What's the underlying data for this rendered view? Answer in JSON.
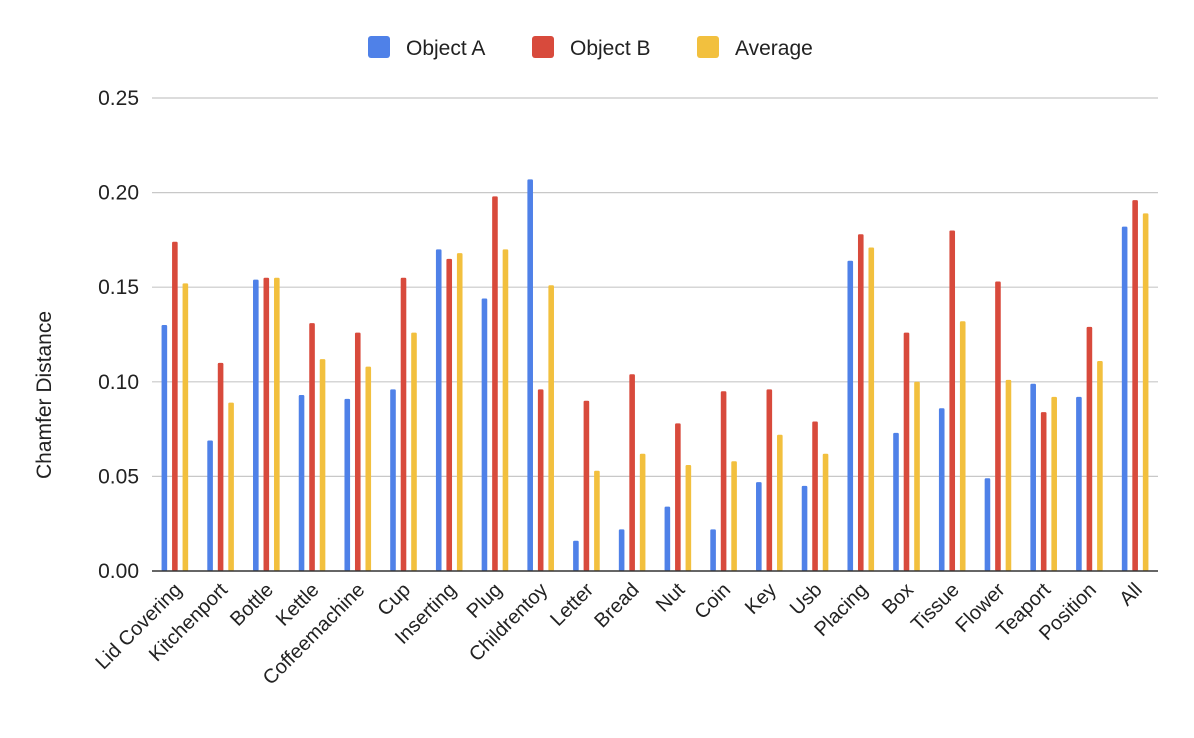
{
  "chart_data": {
    "type": "bar",
    "ylabel": "Chamfer Distance",
    "ylim": [
      0,
      0.25
    ],
    "yticks": [
      "0.00",
      "0.05",
      "0.10",
      "0.15",
      "0.20",
      "0.25"
    ],
    "ytick_values": [
      0,
      0.05,
      0.1,
      0.15,
      0.2,
      0.25
    ],
    "grid": true,
    "legend_position": "top-center",
    "categories": [
      "Lid Covering",
      "Kitchenport",
      "Bottle",
      "Kettle",
      "Coffeemachine",
      "Cup",
      "Inserting",
      "Plug",
      "Childrentoy",
      "Letter",
      "Bread",
      "Nut",
      "Coin",
      "Key",
      "Usb",
      "Placing",
      "Box",
      "Tissue",
      "Flower",
      "Teaport",
      "Position",
      "All"
    ],
    "series": [
      {
        "name": "Object A",
        "color": "#4f81e8",
        "values": [
          0.13,
          0.069,
          0.154,
          0.093,
          0.091,
          0.096,
          0.17,
          0.144,
          0.207,
          0.016,
          0.022,
          0.034,
          0.022,
          0.047,
          0.045,
          0.164,
          0.073,
          0.086,
          0.049,
          0.099,
          0.092,
          0.182
        ]
      },
      {
        "name": "Object B",
        "color": "#d84a3c",
        "values": [
          0.174,
          0.11,
          0.155,
          0.131,
          0.126,
          0.155,
          0.165,
          0.198,
          0.096,
          0.09,
          0.104,
          0.078,
          0.095,
          0.096,
          0.079,
          0.178,
          0.126,
          0.18,
          0.153,
          0.084,
          0.129,
          0.196
        ]
      },
      {
        "name": "Average",
        "color": "#f2c03e",
        "values": [
          0.152,
          0.089,
          0.155,
          0.112,
          0.108,
          0.126,
          0.168,
          0.17,
          0.151,
          0.053,
          0.062,
          0.056,
          0.058,
          0.072,
          0.062,
          0.171,
          0.1,
          0.132,
          0.101,
          0.092,
          0.111,
          0.189
        ]
      }
    ]
  }
}
